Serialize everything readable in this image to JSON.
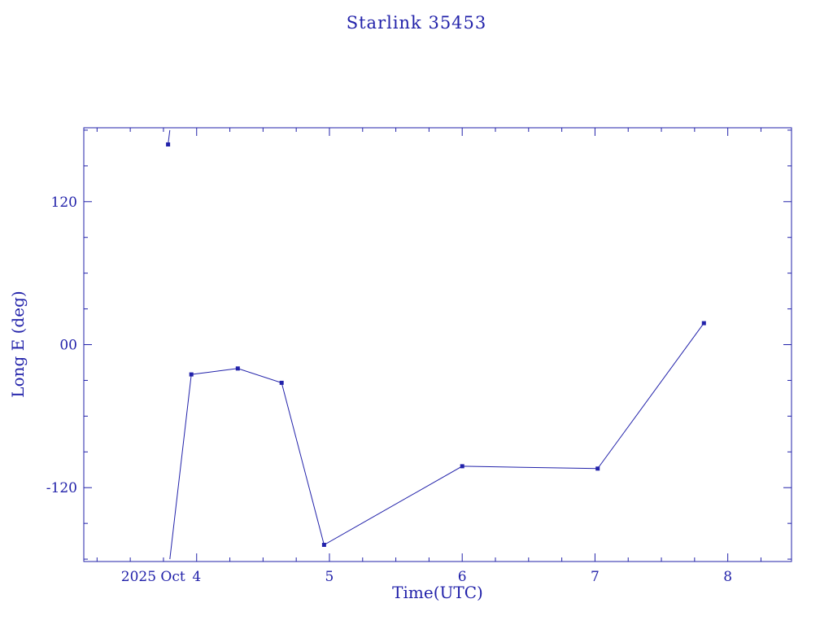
{
  "colors": {
    "primary": "#2222aa",
    "background": "#ffffff"
  },
  "chart_data": {
    "type": "line",
    "title": "Starlink 35453",
    "xlabel": "Time(UTC)",
    "ylabel": "Long E (deg)",
    "x_unit": "day of October 2025 (UTC)",
    "xlim": [
      3.15,
      8.48
    ],
    "ylim": [
      -182,
      182
    ],
    "grid": false,
    "legend": "none",
    "x_ticks": [
      {
        "v": 4,
        "label": "4",
        "prelabel": "2025 Oct"
      },
      {
        "v": 5,
        "label": "5"
      },
      {
        "v": 6,
        "label": "6"
      },
      {
        "v": 7,
        "label": "7"
      },
      {
        "v": 8,
        "label": "8"
      }
    ],
    "x_minor_step": 0.25,
    "y_ticks": [
      {
        "v": 120,
        "label": "120"
      },
      {
        "v": 0,
        "label": "00"
      },
      {
        "v": -120,
        "label": "-120"
      }
    ],
    "y_minor_step": 30,
    "series": [
      {
        "name": "Long E (deg)",
        "marker": "square",
        "points": [
          [
            3.785,
            168
          ],
          [
            3.96,
            -25
          ],
          [
            4.31,
            -20
          ],
          [
            4.64,
            -32
          ],
          [
            4.96,
            -168
          ],
          [
            6.0,
            -102
          ],
          [
            7.02,
            -104
          ],
          [
            7.82,
            18
          ]
        ],
        "segments": [
          [
            [
              3.785,
              168
            ],
            [
              3.798,
              180
            ]
          ],
          [
            [
              3.798,
              -180
            ],
            [
              3.96,
              -25
            ],
            [
              4.31,
              -20
            ],
            [
              4.64,
              -32
            ],
            [
              4.96,
              -168
            ],
            [
              6.0,
              -102
            ],
            [
              7.02,
              -104
            ],
            [
              7.82,
              18
            ]
          ]
        ]
      }
    ]
  }
}
